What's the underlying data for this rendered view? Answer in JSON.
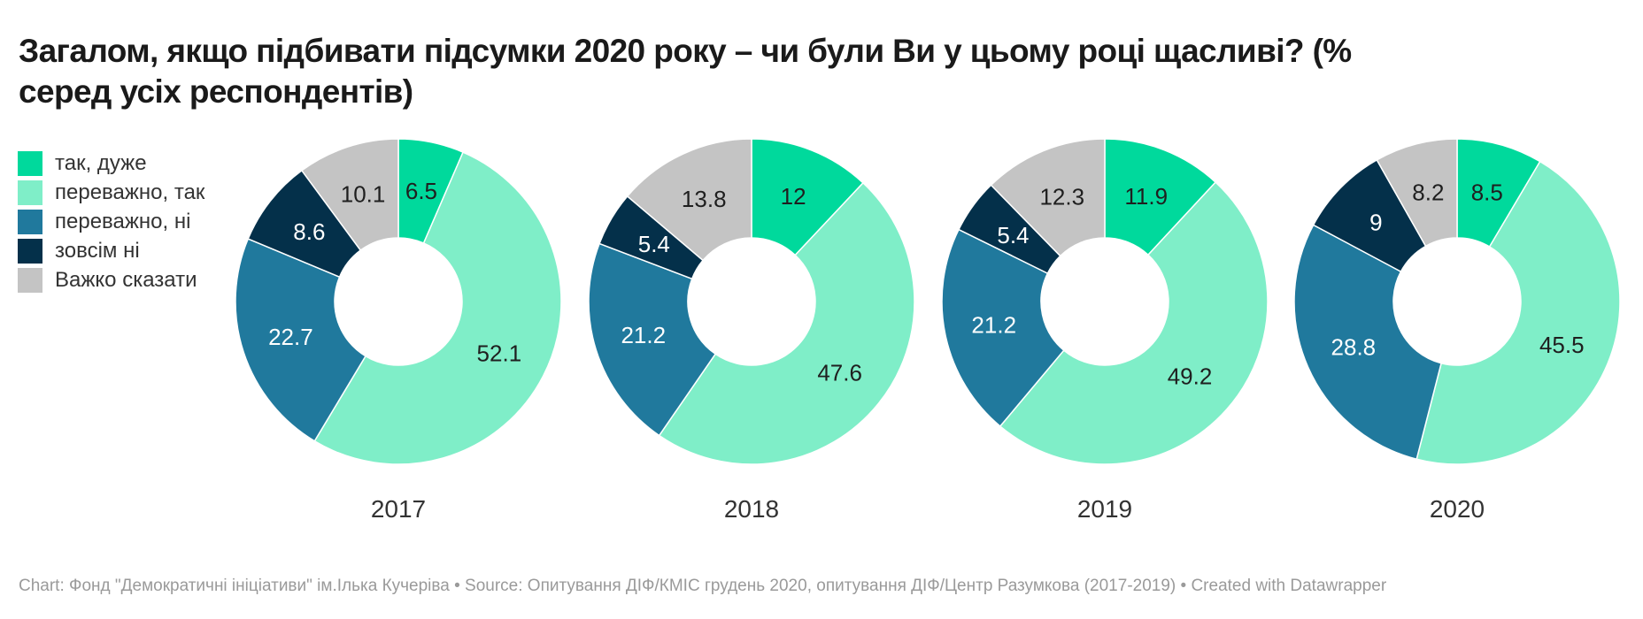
{
  "title": {
    "line1": "Загалом, якщо підбивати підсумки 2020 року – чи були Ви у цьому році щасливі? (%",
    "line2": "серед усіх респондентів)"
  },
  "chart_data": {
    "type": "pie",
    "variant": "donut_multiples",
    "title": "Загалом, якщо підбивати підсумки 2020 року – чи були Ви у цьому році щасливі? (% серед усіх респондентів)",
    "legend_position": "top-left",
    "categories": [
      "так, дуже",
      "переважно, так",
      "переважно, ні",
      "зовсім ні",
      "Важко сказати"
    ],
    "colors": [
      "#00d99c",
      "#7feec8",
      "#20799d",
      "#04304a",
      "#c4c4c4"
    ],
    "label_text_colors": [
      "#1f1f1f",
      "#1f1f1f",
      "#ffffff",
      "#ffffff",
      "#1f1f1f"
    ],
    "groups": [
      {
        "year": "2017",
        "values": [
          6.5,
          52.1,
          22.7,
          8.6,
          10.1
        ],
        "labels": [
          "6.5",
          "52.1",
          "22.7",
          "8.6",
          "10.1"
        ]
      },
      {
        "year": "2018",
        "values": [
          12,
          47.6,
          21.2,
          5.4,
          13.8
        ],
        "labels": [
          "12",
          "47.6",
          "21.2",
          "5.4",
          "13.8"
        ]
      },
      {
        "year": "2019",
        "values": [
          11.9,
          49.2,
          21.2,
          5.4,
          12.3
        ],
        "labels": [
          "11.9",
          "49.2",
          "21.2",
          "5.4",
          "12.3"
        ]
      },
      {
        "year": "2020",
        "values": [
          8.5,
          45.5,
          28.8,
          9,
          8.2
        ],
        "labels": [
          "8.5",
          "45.5",
          "28.8",
          "9",
          "8.2"
        ]
      }
    ]
  },
  "footer": {
    "text": "Chart: Фонд \"Демократичні ініціативи\" ім.Ілька Кучеріва • Source: Опитування ДІФ/КМІС грудень 2020, опитування ДІФ/Центр Разумкова (2017-2019) • Created with Datawrapper"
  }
}
